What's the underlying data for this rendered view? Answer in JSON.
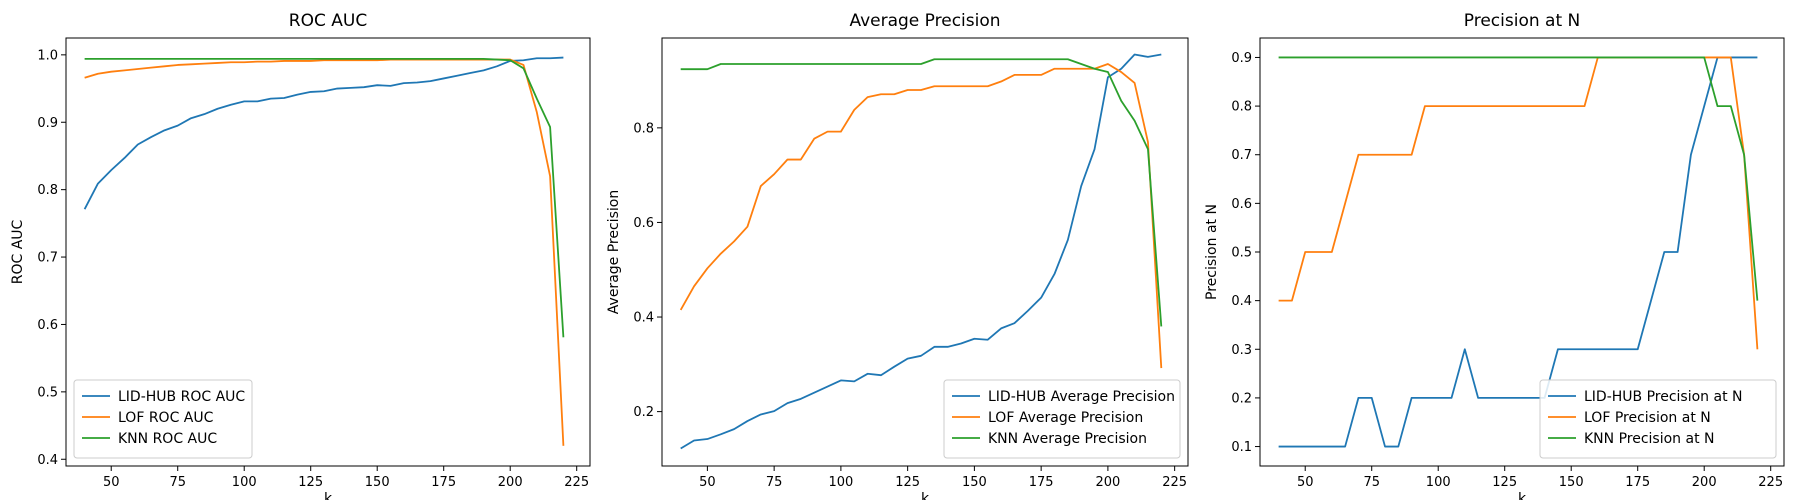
{
  "colors": {
    "LID-HUB": "#1f77b4",
    "LOF": "#ff7f0e",
    "KNN": "#2ca02c"
  },
  "chart_data": [
    {
      "type": "line",
      "title": "ROC AUC",
      "xlabel": "k",
      "ylabel": "ROC AUC",
      "xlim": [
        33,
        230
      ],
      "ylim": [
        0.39,
        1.025
      ],
      "xticks": [
        50,
        75,
        100,
        125,
        150,
        175,
        200,
        225
      ],
      "yticks": [
        0.4,
        0.5,
        0.6,
        0.7,
        0.8,
        0.9,
        1.0
      ],
      "ytick_labels": [
        "0.4",
        "0.5",
        "0.6",
        "0.7",
        "0.8",
        "0.9",
        "1.0"
      ],
      "legend_position": "lower-left",
      "x": [
        40,
        45,
        50,
        55,
        60,
        65,
        70,
        75,
        80,
        85,
        90,
        95,
        100,
        105,
        110,
        115,
        120,
        125,
        130,
        135,
        140,
        145,
        150,
        155,
        160,
        165,
        170,
        175,
        180,
        185,
        190,
        195,
        200,
        205,
        210,
        215,
        220
      ],
      "series": [
        {
          "name": "LID-HUB ROC AUC",
          "key": "LID-HUB",
          "values": [
            0.771,
            0.809,
            0.829,
            0.847,
            0.867,
            0.878,
            0.888,
            0.895,
            0.906,
            0.912,
            0.92,
            0.926,
            0.931,
            0.931,
            0.935,
            0.936,
            0.941,
            0.945,
            0.946,
            0.95,
            0.951,
            0.952,
            0.955,
            0.954,
            0.958,
            0.959,
            0.961,
            0.965,
            0.969,
            0.973,
            0.977,
            0.983,
            0.991,
            0.992,
            0.995,
            0.995,
            0.996
          ]
        },
        {
          "name": "LOF ROC AUC",
          "key": "LOF",
          "values": [
            0.966,
            0.972,
            0.975,
            0.977,
            0.979,
            0.981,
            0.983,
            0.985,
            0.986,
            0.987,
            0.988,
            0.989,
            0.989,
            0.99,
            0.99,
            0.991,
            0.991,
            0.991,
            0.992,
            0.992,
            0.992,
            0.992,
            0.992,
            0.993,
            0.993,
            0.993,
            0.993,
            0.993,
            0.993,
            0.993,
            0.993,
            0.993,
            0.993,
            0.985,
            0.915,
            0.82,
            0.42
          ]
        },
        {
          "name": "KNN ROC AUC",
          "key": "KNN",
          "values": [
            0.994,
            0.994,
            0.994,
            0.994,
            0.994,
            0.994,
            0.994,
            0.994,
            0.994,
            0.994,
            0.994,
            0.994,
            0.994,
            0.994,
            0.994,
            0.994,
            0.994,
            0.994,
            0.994,
            0.994,
            0.994,
            0.994,
            0.994,
            0.994,
            0.994,
            0.994,
            0.994,
            0.994,
            0.994,
            0.994,
            0.994,
            0.993,
            0.992,
            0.98,
            0.935,
            0.893,
            0.581
          ]
        }
      ]
    },
    {
      "type": "line",
      "title": "Average Precision",
      "xlabel": "k",
      "ylabel": "Average Precision",
      "xlim": [
        33,
        230
      ],
      "ylim": [
        0.085,
        0.99
      ],
      "xticks": [
        50,
        75,
        100,
        125,
        150,
        175,
        200,
        225
      ],
      "yticks": [
        0.2,
        0.4,
        0.6,
        0.8
      ],
      "ytick_labels": [
        "0.2",
        "0.4",
        "0.6",
        "0.8"
      ],
      "legend_position": "lower-right",
      "x": [
        40,
        45,
        50,
        55,
        60,
        65,
        70,
        75,
        80,
        85,
        90,
        95,
        100,
        105,
        110,
        115,
        120,
        125,
        130,
        135,
        140,
        145,
        150,
        155,
        160,
        165,
        170,
        175,
        180,
        185,
        190,
        195,
        200,
        205,
        210,
        215,
        220
      ],
      "series": [
        {
          "name": "LID-HUB Average Precision",
          "key": "LID-HUB",
          "values": [
            0.122,
            0.139,
            0.142,
            0.152,
            0.163,
            0.18,
            0.194,
            0.201,
            0.218,
            0.227,
            0.24,
            0.253,
            0.266,
            0.264,
            0.28,
            0.277,
            0.295,
            0.312,
            0.318,
            0.337,
            0.337,
            0.344,
            0.354,
            0.352,
            0.376,
            0.387,
            0.413,
            0.441,
            0.491,
            0.563,
            0.677,
            0.755,
            0.907,
            0.925,
            0.955,
            0.95,
            0.955
          ]
        },
        {
          "name": "LOF Average Precision",
          "key": "LOF",
          "values": [
            0.415,
            0.465,
            0.503,
            0.534,
            0.56,
            0.591,
            0.677,
            0.702,
            0.733,
            0.733,
            0.777,
            0.792,
            0.792,
            0.838,
            0.865,
            0.871,
            0.871,
            0.88,
            0.88,
            0.888,
            0.888,
            0.888,
            0.888,
            0.888,
            0.898,
            0.912,
            0.912,
            0.912,
            0.925,
            0.925,
            0.925,
            0.925,
            0.935,
            0.918,
            0.895,
            0.77,
            0.292
          ]
        },
        {
          "name": "KNN Average Precision",
          "key": "KNN",
          "values": [
            0.924,
            0.924,
            0.924,
            0.935,
            0.935,
            0.935,
            0.935,
            0.935,
            0.935,
            0.935,
            0.935,
            0.935,
            0.935,
            0.935,
            0.935,
            0.935,
            0.935,
            0.935,
            0.935,
            0.945,
            0.945,
            0.945,
            0.945,
            0.945,
            0.945,
            0.945,
            0.945,
            0.945,
            0.945,
            0.945,
            0.935,
            0.925,
            0.918,
            0.857,
            0.815,
            0.755,
            0.38
          ]
        }
      ]
    },
    {
      "type": "line",
      "title": "Precision at N",
      "xlabel": "k",
      "ylabel": "Precision at N",
      "xlim": [
        33,
        230
      ],
      "ylim": [
        0.06,
        0.94
      ],
      "xticks": [
        50,
        75,
        100,
        125,
        150,
        175,
        200,
        225
      ],
      "yticks": [
        0.1,
        0.2,
        0.3,
        0.4,
        0.5,
        0.6,
        0.7,
        0.8,
        0.9
      ],
      "ytick_labels": [
        "0.1",
        "0.2",
        "0.3",
        "0.4",
        "0.5",
        "0.6",
        "0.7",
        "0.8",
        "0.9"
      ],
      "legend_position": "lower-right",
      "x": [
        40,
        45,
        50,
        55,
        60,
        65,
        70,
        75,
        80,
        85,
        90,
        95,
        100,
        105,
        110,
        115,
        120,
        125,
        130,
        135,
        140,
        145,
        150,
        155,
        160,
        165,
        170,
        175,
        180,
        185,
        190,
        195,
        200,
        205,
        210,
        215,
        220
      ],
      "series": [
        {
          "name": "LID-HUB Precision at N",
          "key": "LID-HUB",
          "values": [
            0.1,
            0.1,
            0.1,
            0.1,
            0.1,
            0.1,
            0.2,
            0.2,
            0.1,
            0.1,
            0.2,
            0.2,
            0.2,
            0.2,
            0.3,
            0.2,
            0.2,
            0.2,
            0.2,
            0.2,
            0.2,
            0.3,
            0.3,
            0.3,
            0.3,
            0.3,
            0.3,
            0.3,
            0.4,
            0.5,
            0.5,
            0.7,
            0.8,
            0.9,
            0.9,
            0.9,
            0.9
          ]
        },
        {
          "name": "LOF Precision at N",
          "key": "LOF",
          "values": [
            0.4,
            0.4,
            0.5,
            0.5,
            0.5,
            0.6,
            0.7,
            0.7,
            0.7,
            0.7,
            0.7,
            0.8,
            0.8,
            0.8,
            0.8,
            0.8,
            0.8,
            0.8,
            0.8,
            0.8,
            0.8,
            0.8,
            0.8,
            0.8,
            0.9,
            0.9,
            0.9,
            0.9,
            0.9,
            0.9,
            0.9,
            0.9,
            0.9,
            0.9,
            0.9,
            0.7,
            0.3
          ]
        },
        {
          "name": "KNN Precision at N",
          "key": "KNN",
          "values": [
            0.9,
            0.9,
            0.9,
            0.9,
            0.9,
            0.9,
            0.9,
            0.9,
            0.9,
            0.9,
            0.9,
            0.9,
            0.9,
            0.9,
            0.9,
            0.9,
            0.9,
            0.9,
            0.9,
            0.9,
            0.9,
            0.9,
            0.9,
            0.9,
            0.9,
            0.9,
            0.9,
            0.9,
            0.9,
            0.9,
            0.9,
            0.9,
            0.9,
            0.8,
            0.8,
            0.7,
            0.4
          ]
        }
      ]
    }
  ]
}
